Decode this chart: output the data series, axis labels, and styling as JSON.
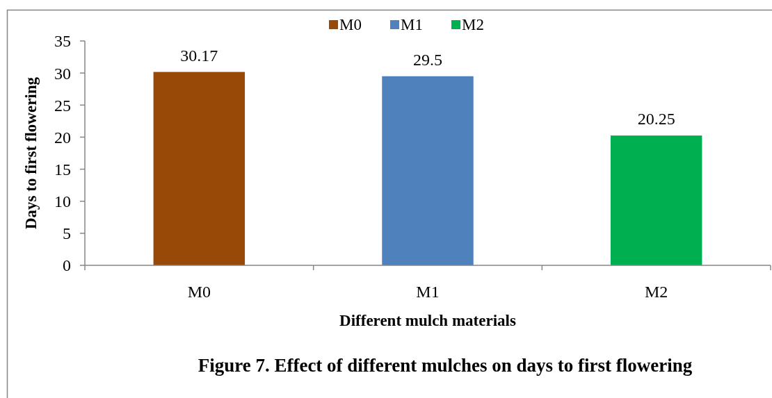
{
  "chart_data": {
    "type": "bar",
    "title": "Figure 7. Effect of different mulches on days to first flowering",
    "xlabel": "Different mulch materials",
    "ylabel": "Days to first flowering",
    "categories": [
      "M0",
      "M1",
      "M2"
    ],
    "series": [
      {
        "name": "M0",
        "color": "#984807",
        "values": [
          30.17,
          null,
          null
        ]
      },
      {
        "name": "M1",
        "color": "#4f81bd",
        "values": [
          null,
          29.5,
          null
        ]
      },
      {
        "name": "M2",
        "color": "#00b050",
        "values": [
          null,
          null,
          20.25
        ]
      }
    ],
    "stacked": true,
    "ylim": [
      0,
      35
    ],
    "yticks": [
      0,
      5,
      10,
      15,
      20,
      25,
      30,
      35
    ],
    "data_labels": true,
    "legend": "top"
  }
}
